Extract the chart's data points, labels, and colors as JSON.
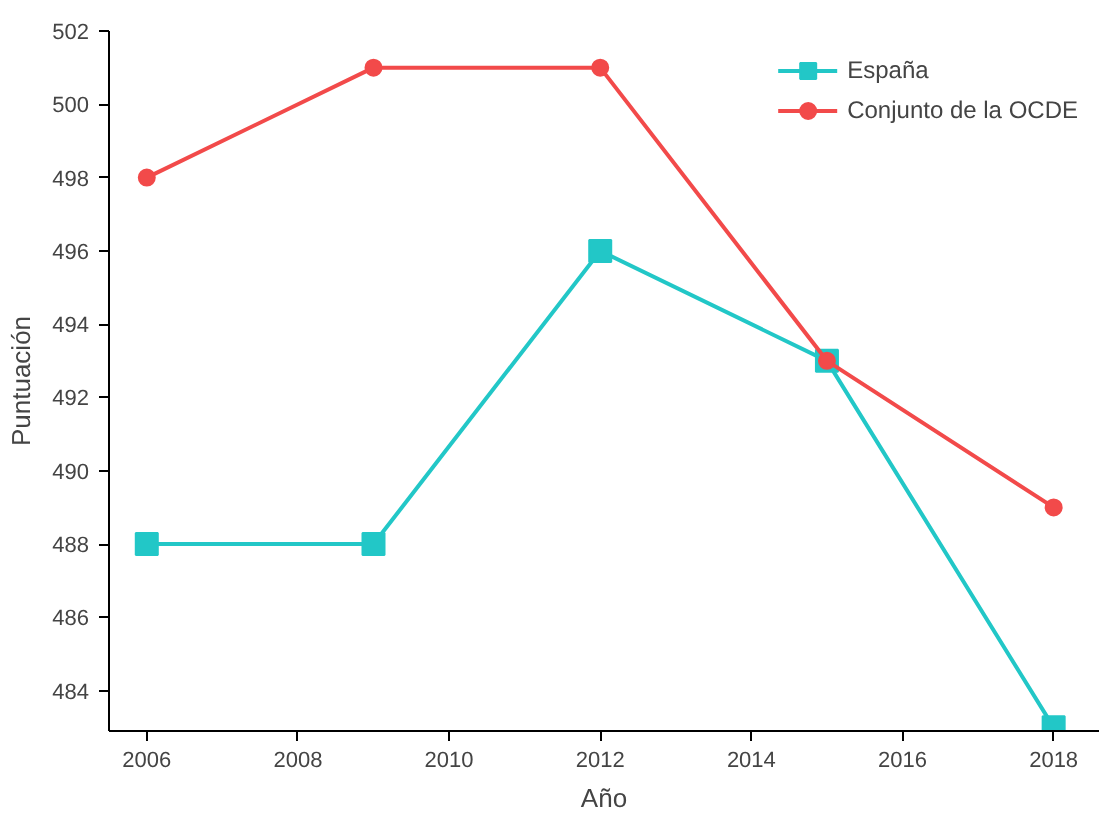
{
  "chart_data": {
    "type": "line",
    "xlabel": "Año",
    "ylabel": "Puntuación",
    "x": [
      2006,
      2009,
      2012,
      2015,
      2018
    ],
    "series": [
      {
        "name": "España",
        "color": "#22c7c7",
        "marker": "square",
        "values": [
          488,
          488,
          496,
          493,
          483
        ]
      },
      {
        "name": "Conjunto de la OCDE",
        "color": "#f24a4a",
        "marker": "circle",
        "values": [
          498,
          501,
          501,
          493,
          489
        ]
      }
    ],
    "xlim": [
      2005.5,
      2018.6
    ],
    "ylim": [
      482.9,
      502
    ],
    "xticks": [
      2006,
      2008,
      2010,
      2012,
      2014,
      2016,
      2018
    ],
    "yticks": [
      484,
      486,
      488,
      490,
      492,
      494,
      496,
      498,
      500,
      502
    ],
    "grid": false,
    "legend": "top right",
    "line_style": "solid"
  }
}
